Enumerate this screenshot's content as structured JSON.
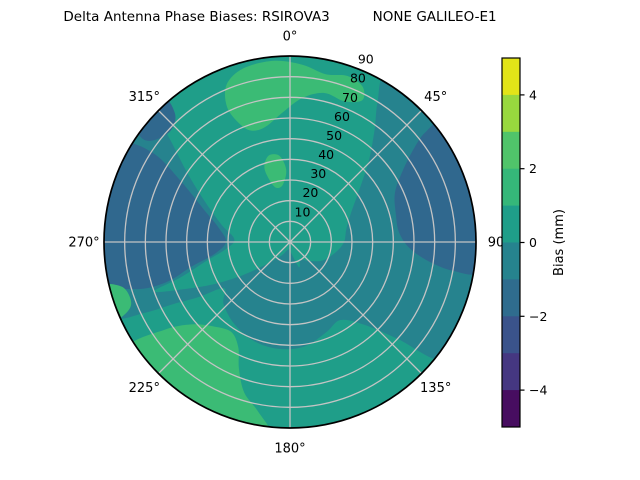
{
  "title": "Delta Antenna Phase Biases: RSIROVA3          NONE GALILEO-E1",
  "background_color": "#ffffff",
  "chart_data": {
    "type": "heatmap",
    "subtype": "polar_filled_contour",
    "title": "Delta Antenna Phase Biases: RSIROVA3          NONE GALILEO-E1",
    "grid": true,
    "grid_color": "#c4c4c4",
    "outline_color": "#000000",
    "angular_ticks": [
      {
        "label": "0°",
        "angle": 0
      },
      {
        "label": "45°",
        "angle": 45
      },
      {
        "label": "90",
        "angle": 90
      },
      {
        "label": "135°",
        "angle": 135
      },
      {
        "label": "180°",
        "angle": 180
      },
      {
        "label": "225°",
        "angle": 225
      },
      {
        "label": "270°",
        "angle": 270
      },
      {
        "label": "315°",
        "angle": 315
      }
    ],
    "radial_ticks": [
      "10",
      "20",
      "30",
      "40",
      "50",
      "60",
      "70",
      "80",
      "90"
    ],
    "radial_range": [
      0,
      90
    ],
    "radial_label_angle_deg": 22.5,
    "base_fill": {
      "bias_range_mm": [
        0,
        1
      ],
      "color": "#1f9e89"
    },
    "regions": [
      {
        "name": "mid-teal-band",
        "bias_range_mm": [
          -1,
          0
        ],
        "color": "#26838e",
        "outline_polar": [
          [
            30,
            93
          ],
          [
            45,
            93
          ],
          [
            60,
            93
          ],
          [
            75,
            93
          ],
          [
            90,
            93
          ],
          [
            105,
            93
          ],
          [
            118,
            93
          ],
          [
            128,
            93
          ],
          [
            132,
            70
          ],
          [
            138,
            54
          ],
          [
            147,
            45
          ],
          [
            158,
            47
          ],
          [
            172,
            51
          ],
          [
            186,
            52
          ],
          [
            200,
            51
          ],
          [
            214,
            48
          ],
          [
            227,
            44
          ],
          [
            235,
            39
          ],
          [
            239,
            52
          ],
          [
            242,
            64
          ],
          [
            244,
            78
          ],
          [
            247,
            93
          ],
          [
            258,
            93
          ],
          [
            270,
            93
          ],
          [
            282,
            93
          ],
          [
            294,
            93
          ],
          [
            306,
            93
          ],
          [
            314,
            93
          ],
          [
            311,
            78
          ],
          [
            304,
            60
          ],
          [
            295,
            45
          ],
          [
            284,
            34
          ],
          [
            273,
            27
          ],
          [
            264,
            31
          ],
          [
            257,
            42
          ],
          [
            252,
            56
          ],
          [
            250,
            70
          ],
          [
            246,
            56
          ],
          [
            241,
            42
          ],
          [
            235,
            28
          ],
          [
            227,
            16
          ],
          [
            213,
            8
          ],
          [
            197,
            4
          ],
          [
            181,
            4
          ],
          [
            169,
            7
          ],
          [
            160,
            13
          ],
          [
            149,
            10
          ],
          [
            135,
            13
          ],
          [
            120,
            18
          ],
          [
            105,
            22
          ],
          [
            91,
            26
          ],
          [
            77,
            28
          ],
          [
            64,
            33
          ],
          [
            53,
            42
          ],
          [
            44,
            55
          ],
          [
            37,
            68
          ],
          [
            32,
            80
          ]
        ]
      },
      {
        "name": "blue-left",
        "bias_range_mm": [
          -2,
          -1
        ],
        "color": "#30688e",
        "outline_polar": [
          [
            258,
            93
          ],
          [
            270,
            93
          ],
          [
            282,
            93
          ],
          [
            294,
            93
          ],
          [
            301,
            93
          ],
          [
            303,
            78
          ],
          [
            299,
            60
          ],
          [
            291,
            45
          ],
          [
            281,
            35
          ],
          [
            270,
            31
          ],
          [
            261,
            37
          ],
          [
            256,
            49
          ],
          [
            252,
            63
          ],
          [
            253,
            78
          ]
        ]
      },
      {
        "name": "blue-upper-right",
        "bias_range_mm": [
          -2,
          -1
        ],
        "color": "#30688e",
        "outline_polar": [
          [
            52,
            93
          ],
          [
            64,
            93
          ],
          [
            76,
            93
          ],
          [
            88,
            93
          ],
          [
            99,
            93
          ],
          [
            100,
            80
          ],
          [
            98,
            68
          ],
          [
            93,
            58
          ],
          [
            85,
            53
          ],
          [
            75,
            53
          ],
          [
            65,
            56
          ],
          [
            58,
            64
          ],
          [
            53,
            75
          ],
          [
            51,
            84
          ]
        ]
      },
      {
        "name": "blue-topleft-rim",
        "bias_range_mm": [
          -2,
          -1
        ],
        "color": "#30688e",
        "outline_polar": [
          [
            307,
            93
          ],
          [
            313,
            93
          ],
          [
            319,
            93
          ],
          [
            318,
            83
          ],
          [
            313,
            79
          ],
          [
            307,
            82
          ],
          [
            305,
            87
          ]
        ]
      },
      {
        "name": "green-top-arc",
        "bias_range_mm": [
          1,
          2
        ],
        "color": "#3bbb75",
        "outline_polar": [
          [
            337,
            62
          ],
          [
            335,
            72
          ],
          [
            338,
            82
          ],
          [
            345,
            87
          ],
          [
            355,
            88
          ],
          [
            4,
            86
          ],
          [
            12,
            83
          ],
          [
            19,
            85
          ],
          [
            25,
            83
          ],
          [
            27,
            77
          ],
          [
            21,
            73
          ],
          [
            13,
            74
          ],
          [
            5,
            70
          ],
          [
            357,
            63
          ],
          [
            348,
            57
          ],
          [
            341,
            57
          ]
        ]
      },
      {
        "name": "green-center-blob",
        "bias_range_mm": [
          1,
          2
        ],
        "color": "#3bbb75",
        "outline_polar": [
          [
            342,
            31
          ],
          [
            341,
            38
          ],
          [
            346,
            43
          ],
          [
            353,
            42
          ],
          [
            357,
            35
          ],
          [
            353,
            28
          ],
          [
            346,
            27
          ]
        ]
      },
      {
        "name": "green-bottom-left",
        "bias_range_mm": [
          1,
          2
        ],
        "color": "#3bbb75",
        "outline_polar": [
          [
            186,
            93
          ],
          [
            196,
            93
          ],
          [
            206,
            93
          ],
          [
            216,
            93
          ],
          [
            226,
            93
          ],
          [
            237,
            93
          ],
          [
            235,
            74
          ],
          [
            230,
            62
          ],
          [
            222,
            55
          ],
          [
            213,
            52
          ],
          [
            206,
            57
          ],
          [
            202,
            66
          ],
          [
            197,
            76
          ],
          [
            191,
            83
          ]
        ]
      },
      {
        "name": "green-left-rim",
        "bias_range_mm": [
          1,
          2
        ],
        "color": "#3bbb75",
        "outline_polar": [
          [
            246,
            93
          ],
          [
            251,
            93
          ],
          [
            257,
            93
          ],
          [
            255,
            84
          ],
          [
            250,
            82
          ],
          [
            247,
            85
          ]
        ]
      }
    ],
    "colorbar": {
      "label": "Bias (mm)",
      "range_mm": [
        -5,
        5
      ],
      "tick_values": [
        4,
        2,
        0,
        -2,
        -4
      ],
      "tick_labels": [
        "4",
        "2",
        "0",
        "−2",
        "−4"
      ],
      "segments_top_to_bottom": [
        {
          "range_mm": [
            4,
            5
          ],
          "color": "#e2e418"
        },
        {
          "range_mm": [
            3,
            4
          ],
          "color": "#98d83e"
        },
        {
          "range_mm": [
            2,
            3
          ],
          "color": "#50c46a"
        },
        {
          "range_mm": [
            1,
            2
          ],
          "color": "#35b779"
        },
        {
          "range_mm": [
            0,
            1
          ],
          "color": "#1f9e89"
        },
        {
          "range_mm": [
            -1,
            0
          ],
          "color": "#26838e"
        },
        {
          "range_mm": [
            -2,
            -1
          ],
          "color": "#2f6c8e"
        },
        {
          "range_mm": [
            -3,
            -2
          ],
          "color": "#3a538b"
        },
        {
          "range_mm": [
            -4,
            -3
          ],
          "color": "#453781"
        },
        {
          "range_mm": [
            -5,
            -4
          ],
          "color": "#470d60"
        }
      ]
    }
  }
}
